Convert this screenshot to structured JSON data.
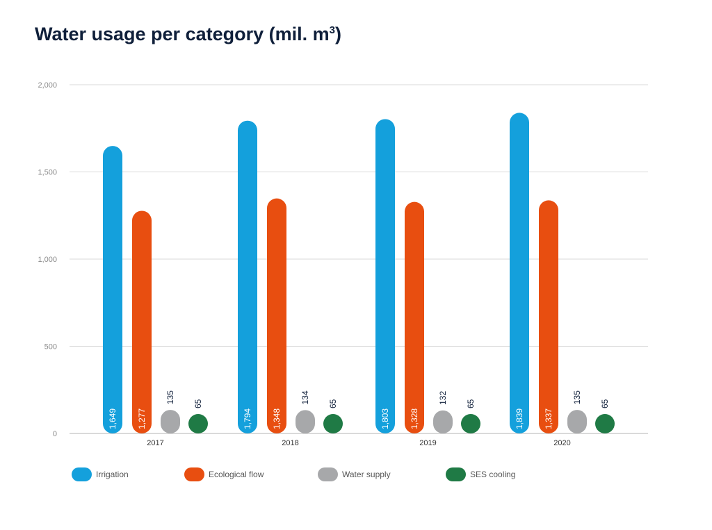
{
  "title_main": "Water usage per category (mil. m",
  "title_sup": "3",
  "title_end": ")",
  "chart_data": {
    "type": "bar",
    "title": "Water usage per category (mil. m³)",
    "categories": [
      "2017",
      "2018",
      "2019",
      "2020"
    ],
    "series": [
      {
        "name": "Irrigation",
        "values": [
          1649,
          1794,
          1803,
          1839
        ],
        "labels": [
          "1,649",
          "1,794",
          "1,803",
          "1,839"
        ],
        "color": "#14a0dc"
      },
      {
        "name": "Ecological flow",
        "values": [
          1277,
          1348,
          1328,
          1337
        ],
        "labels": [
          "1,277",
          "1,348",
          "1,328",
          "1,337"
        ],
        "color": "#e84e10"
      },
      {
        "name": "Water supply",
        "values": [
          135,
          134,
          132,
          135
        ],
        "labels": [
          "135",
          "134",
          "132",
          "135"
        ],
        "color": "#a7a8aa"
      },
      {
        "name": "SES cooling",
        "values": [
          65,
          65,
          65,
          65
        ],
        "labels": [
          "65",
          "65",
          "65",
          "65"
        ],
        "color": "#1f7a45"
      }
    ],
    "yticks": [
      0,
      500,
      1000,
      1500,
      2000
    ],
    "ytick_labels": [
      "0",
      "500",
      "1,000",
      "1,500",
      "2,000"
    ],
    "ylim": [
      0,
      2000
    ],
    "grid": true,
    "legend_position": "bottom"
  }
}
